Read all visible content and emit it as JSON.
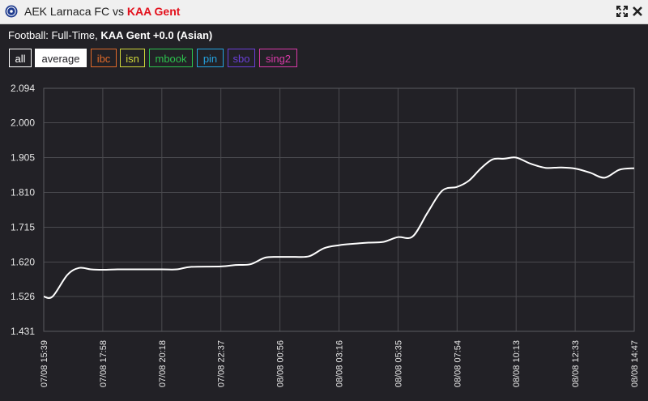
{
  "window": {
    "title_home": "AEK Larnaca FC",
    "title_vs": "vs",
    "title_away": "KAA Gent",
    "logo_icon": "soccer-ball-icon",
    "expand_icon": "expand-icon",
    "close_icon": "close-icon"
  },
  "subtitle": {
    "prefix": "Football: Full-Time,",
    "market": "KAA Gent +0.0 (Asian)"
  },
  "filters": [
    {
      "label": "all",
      "color": "#ffffff",
      "selected": false
    },
    {
      "label": "average",
      "color": "#222126",
      "selected": true
    },
    {
      "label": "ibc",
      "color": "#e06a2a",
      "selected": false
    },
    {
      "label": "isn",
      "color": "#cfd63a",
      "selected": false
    },
    {
      "label": "mbook",
      "color": "#2dc24e",
      "selected": false
    },
    {
      "label": "pin",
      "color": "#25a3e0",
      "selected": false
    },
    {
      "label": "sbo",
      "color": "#6a3fd6",
      "selected": false
    },
    {
      "label": "sing2",
      "color": "#d93aa8",
      "selected": false
    }
  ],
  "chart_data": {
    "type": "line",
    "ylim": [
      1.431,
      2.094
    ],
    "y_ticks": [
      "2.094",
      "2.000",
      "1.905",
      "1.810",
      "1.715",
      "1.620",
      "1.526",
      "1.431"
    ],
    "x_tick_labels": [
      "07/08 15:39",
      "07/08 17:58",
      "07/08 20:18",
      "07/08 22:37",
      "08/08 00:56",
      "08/08 03:16",
      "08/08 05:35",
      "08/08 07:54",
      "08/08 10:13",
      "08/08 12:33",
      "08/08 14:47"
    ],
    "grid": true,
    "series": [
      {
        "color": "#ffffff",
        "x": [
          0,
          0.15,
          0.4,
          0.6,
          0.8,
          1.0,
          1.25,
          1.5,
          2.0,
          2.25,
          2.5,
          3.0,
          3.25,
          3.5,
          3.75,
          4.0,
          4.25,
          4.5,
          4.75,
          5.0,
          5.25,
          5.5,
          5.75,
          6.0,
          6.25,
          6.5,
          6.75,
          7.0,
          7.2,
          7.4,
          7.6,
          7.8,
          8.0,
          8.25,
          8.5,
          8.75,
          9.0,
          9.25,
          9.5,
          9.75,
          10.0
        ],
        "values": [
          1.526,
          1.526,
          1.585,
          1.604,
          1.6,
          1.599,
          1.6,
          1.6,
          1.6,
          1.6,
          1.607,
          1.608,
          1.612,
          1.614,
          1.632,
          1.634,
          1.634,
          1.636,
          1.658,
          1.666,
          1.67,
          1.673,
          1.675,
          1.688,
          1.69,
          1.755,
          1.815,
          1.825,
          1.842,
          1.875,
          1.9,
          1.902,
          1.905,
          1.888,
          1.877,
          1.878,
          1.875,
          1.864,
          1.85,
          1.872,
          1.876
        ]
      }
    ]
  }
}
